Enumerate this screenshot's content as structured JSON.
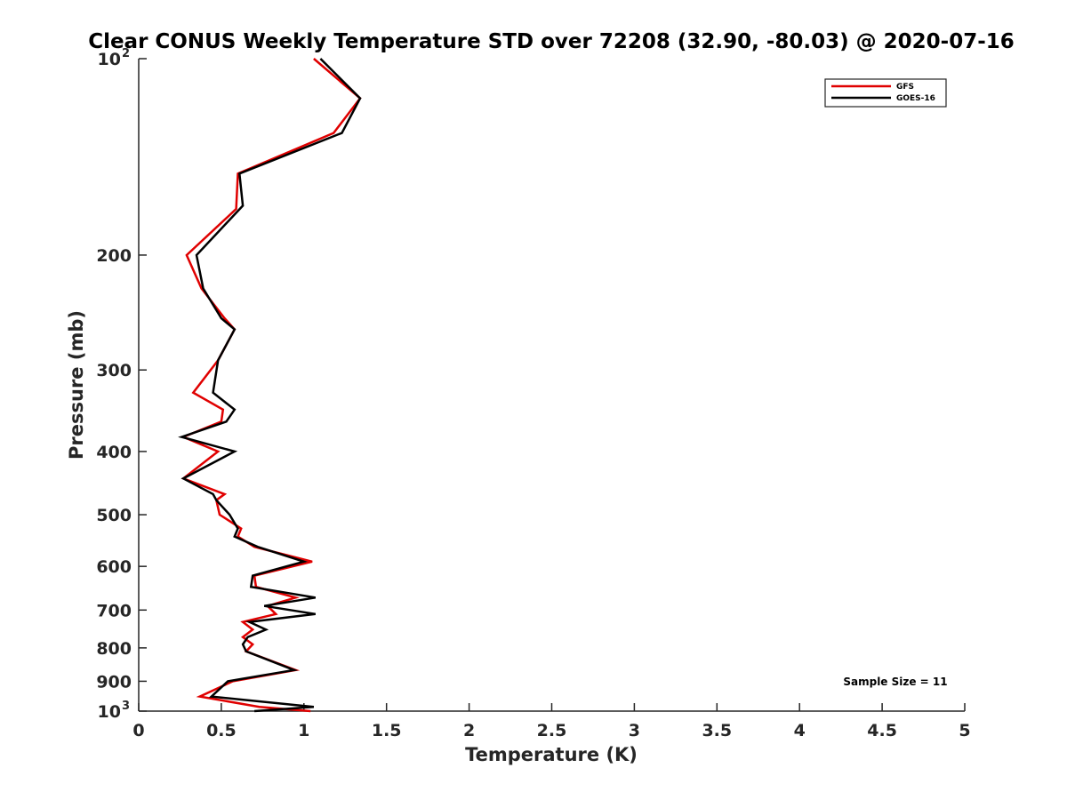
{
  "chart_data": {
    "type": "line",
    "title": "Clear CONUS Weekly Temperature STD over 72208 (32.90, -80.03) @ 2020-07-16",
    "xlabel": "Temperature (K)",
    "ylabel": "Pressure (mb)",
    "xlim": [
      0,
      5
    ],
    "ylim": [
      100,
      1000
    ],
    "y_scale": "log",
    "y_reversed": true,
    "grid": false,
    "x_ticks": [
      "0",
      "0.5",
      "1",
      "1.5",
      "2",
      "2.5",
      "3",
      "3.5",
      "4",
      "4.5",
      "5"
    ],
    "y_ticks": [
      {
        "value": 100,
        "base": "10",
        "exp": "2"
      },
      {
        "value": 200,
        "label": "200"
      },
      {
        "value": 300,
        "label": "300"
      },
      {
        "value": 400,
        "label": "400"
      },
      {
        "value": 500,
        "label": "500"
      },
      {
        "value": 600,
        "label": "600"
      },
      {
        "value": 700,
        "label": "700"
      },
      {
        "value": 800,
        "label": "800"
      },
      {
        "value": 900,
        "label": "900"
      },
      {
        "value": 1000,
        "base": "10",
        "exp": "3"
      }
    ],
    "legend_position": "top-right",
    "annotation": "Sample Size = 11",
    "series": [
      {
        "name": "GFS",
        "color": "#e00000",
        "points": [
          [
            1.06,
            100
          ],
          [
            1.34,
            115
          ],
          [
            1.18,
            130
          ],
          [
            0.6,
            150
          ],
          [
            0.59,
            170
          ],
          [
            0.29,
            200
          ],
          [
            0.38,
            225
          ],
          [
            0.52,
            250
          ],
          [
            0.58,
            260
          ],
          [
            0.48,
            290
          ],
          [
            0.33,
            325
          ],
          [
            0.51,
            345
          ],
          [
            0.5,
            360
          ],
          [
            0.27,
            380
          ],
          [
            0.48,
            400
          ],
          [
            0.27,
            440
          ],
          [
            0.52,
            465
          ],
          [
            0.47,
            475
          ],
          [
            0.49,
            500
          ],
          [
            0.62,
            525
          ],
          [
            0.6,
            540
          ],
          [
            0.7,
            560
          ],
          [
            1.05,
            590
          ],
          [
            0.7,
            620
          ],
          [
            0.71,
            645
          ],
          [
            0.95,
            670
          ],
          [
            0.78,
            690
          ],
          [
            0.83,
            710
          ],
          [
            0.63,
            730
          ],
          [
            0.69,
            750
          ],
          [
            0.63,
            770
          ],
          [
            0.69,
            790
          ],
          [
            0.65,
            810
          ],
          [
            0.95,
            865
          ],
          [
            0.57,
            900
          ],
          [
            0.37,
            950
          ],
          [
            0.73,
            985
          ],
          [
            1.04,
            1000
          ]
        ]
      },
      {
        "name": "GOES-16",
        "color": "#000000",
        "points": [
          [
            1.1,
            100
          ],
          [
            1.34,
            115
          ],
          [
            1.23,
            130
          ],
          [
            0.61,
            150
          ],
          [
            0.63,
            168
          ],
          [
            0.35,
            200
          ],
          [
            0.39,
            225
          ],
          [
            0.5,
            250
          ],
          [
            0.58,
            260
          ],
          [
            0.48,
            290
          ],
          [
            0.45,
            325
          ],
          [
            0.58,
            345
          ],
          [
            0.53,
            360
          ],
          [
            0.26,
            380
          ],
          [
            0.58,
            400
          ],
          [
            0.27,
            440
          ],
          [
            0.45,
            465
          ],
          [
            0.47,
            475
          ],
          [
            0.55,
            500
          ],
          [
            0.6,
            525
          ],
          [
            0.58,
            540
          ],
          [
            0.72,
            560
          ],
          [
            1.0,
            590
          ],
          [
            0.69,
            620
          ],
          [
            0.68,
            645
          ],
          [
            1.07,
            670
          ],
          [
            0.76,
            690
          ],
          [
            1.07,
            710
          ],
          [
            0.67,
            730
          ],
          [
            0.77,
            750
          ],
          [
            0.66,
            770
          ],
          [
            0.63,
            790
          ],
          [
            0.65,
            810
          ],
          [
            0.94,
            865
          ],
          [
            0.54,
            900
          ],
          [
            0.44,
            950
          ],
          [
            1.06,
            985
          ],
          [
            0.7,
            1000
          ]
        ]
      }
    ]
  }
}
